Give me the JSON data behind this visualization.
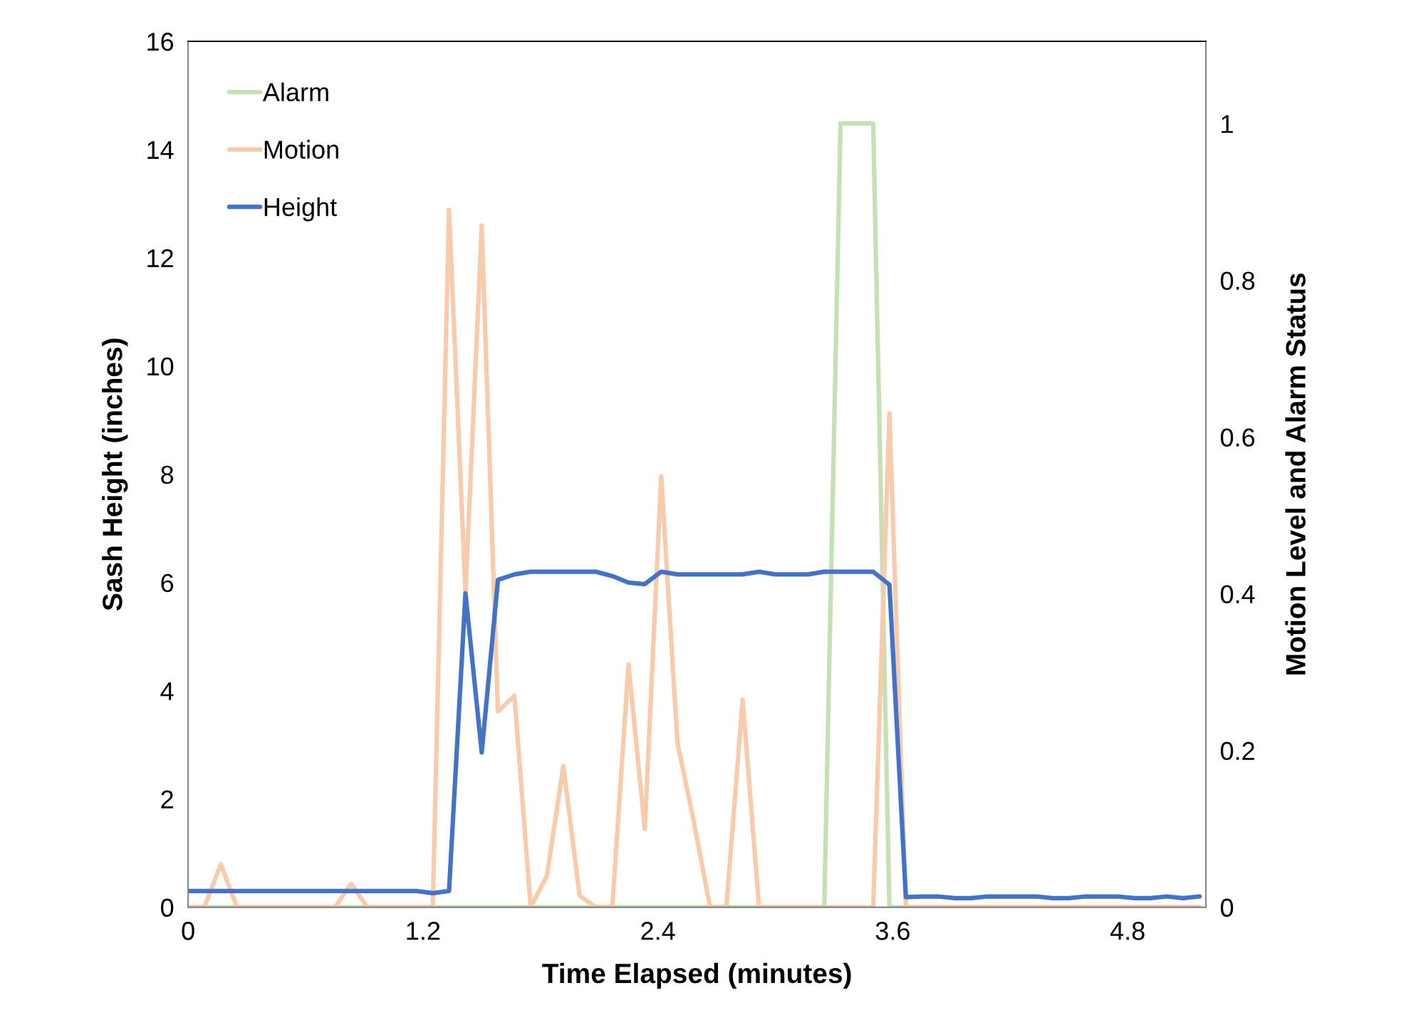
{
  "chart_data": {
    "type": "line",
    "xlabel": "Time Elapsed (minutes)",
    "ylabel": "Sash Height (inches)",
    "y2label": "Motion Level and Alarm Status",
    "x": [
      0,
      0.083,
      0.167,
      0.25,
      0.333,
      0.417,
      0.5,
      0.583,
      0.667,
      0.75,
      0.833,
      0.917,
      1.0,
      1.083,
      1.167,
      1.25,
      1.333,
      1.417,
      1.5,
      1.583,
      1.667,
      1.75,
      1.833,
      1.917,
      2.0,
      2.083,
      2.167,
      2.25,
      2.333,
      2.417,
      2.5,
      2.583,
      2.667,
      2.75,
      2.833,
      2.917,
      3.0,
      3.083,
      3.167,
      3.25,
      3.333,
      3.417,
      3.5,
      3.583,
      3.667,
      3.75,
      3.833,
      3.917,
      4.0,
      4.083,
      4.167,
      4.25,
      4.333,
      4.417,
      4.5,
      4.583,
      4.667,
      4.75,
      4.833,
      4.917,
      5.0,
      5.083,
      5.167
    ],
    "series": [
      {
        "name": "Alarm",
        "color": "#c5e0b4",
        "axis": "y2",
        "values": [
          0,
          0,
          0,
          0,
          0,
          0,
          0,
          0,
          0,
          0,
          0,
          0,
          0,
          0,
          0,
          0,
          0,
          0,
          0,
          0,
          0,
          0,
          0,
          0,
          0,
          0,
          0,
          0,
          0,
          0,
          0,
          0,
          0,
          0,
          0,
          0,
          0,
          0,
          0,
          0,
          1,
          1,
          1,
          0,
          0,
          0,
          0,
          0,
          0,
          0,
          0,
          0,
          0,
          0,
          0,
          0,
          0,
          0,
          0,
          0,
          0,
          0,
          0
        ]
      },
      {
        "name": "Motion",
        "color": "#f8cbad",
        "axis": "y2",
        "values": [
          0,
          0,
          0.055,
          0,
          0,
          0,
          0,
          0,
          0,
          0,
          0.03,
          0,
          0,
          0,
          0,
          0,
          0.89,
          0.4,
          0.87,
          0.25,
          0.27,
          0,
          0.04,
          0.18,
          0.015,
          0,
          0,
          0.31,
          0.1,
          0.55,
          0.21,
          0.11,
          0,
          0,
          0.265,
          0,
          0,
          0,
          0,
          0,
          0,
          0,
          0,
          0.63,
          0,
          0,
          0,
          0,
          0,
          0,
          0,
          0,
          0,
          0,
          0,
          0,
          0,
          0,
          0,
          0,
          0,
          0,
          0
        ]
      },
      {
        "name": "Height",
        "color": "#4472c4",
        "values": [
          0.3,
          0.3,
          0.3,
          0.3,
          0.3,
          0.3,
          0.3,
          0.3,
          0.3,
          0.3,
          0.3,
          0.3,
          0.3,
          0.3,
          0.3,
          0.26,
          0.3,
          5.8,
          2.86,
          6.05,
          6.15,
          6.2,
          6.2,
          6.2,
          6.2,
          6.2,
          6.12,
          6.0,
          5.97,
          6.2,
          6.15,
          6.15,
          6.15,
          6.15,
          6.15,
          6.2,
          6.15,
          6.15,
          6.15,
          6.2,
          6.2,
          6.2,
          6.2,
          5.96,
          0.19,
          0.2,
          0.2,
          0.17,
          0.17,
          0.2,
          0.2,
          0.2,
          0.2,
          0.17,
          0.17,
          0.2,
          0.2,
          0.2,
          0.17,
          0.17,
          0.2,
          0.17,
          0.2
        ]
      }
    ],
    "xlim": [
      0,
      5.2
    ],
    "xticks": [
      0,
      1.2,
      2.4,
      3.6,
      4.8
    ],
    "ylim": [
      0,
      16
    ],
    "yticks": [
      0,
      2,
      4,
      6,
      8,
      10,
      12,
      14,
      16
    ],
    "y2lim": [
      0,
      1.105
    ],
    "y2ticks": [
      0,
      0.2,
      0.4,
      0.6,
      0.8,
      1
    ],
    "grid": false,
    "legend": "top left",
    "marker": "none",
    "line_style": "solid"
  }
}
